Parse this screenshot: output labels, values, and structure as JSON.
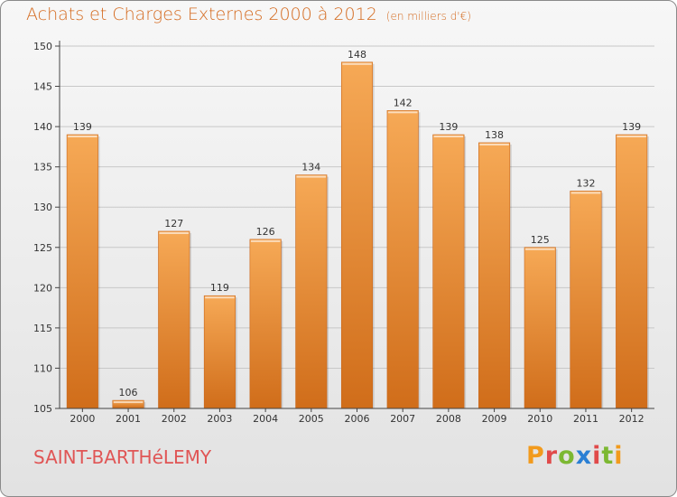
{
  "header": {
    "title": "Achats et Charges Externes 2000 à 2012",
    "unit": "(en milliers d'€)"
  },
  "footer": {
    "place": "SAINT-BARTHéLEMY",
    "logo_text": "Proxiti",
    "logo_colors": [
      "#f29a1c",
      "#e04a4a",
      "#7cb832",
      "#2a7fd4",
      "#e04a4a",
      "#7cb832",
      "#f29a1c"
    ]
  },
  "colors": {
    "bar_top": "#f6a956",
    "bar_bottom": "#d06d1a",
    "title": "#d46a1f",
    "place": "#e05555",
    "axis": "#444444",
    "grid": "#c8c8c8"
  },
  "chart_data": {
    "type": "bar",
    "title": "Achats et Charges Externes 2000 à 2012",
    "subtitle": "(en milliers d'€)",
    "categories": [
      "2000",
      "2001",
      "2002",
      "2003",
      "2004",
      "2005",
      "2006",
      "2007",
      "2008",
      "2009",
      "2010",
      "2011",
      "2012"
    ],
    "values": [
      139,
      106,
      127,
      119,
      126,
      134,
      148,
      142,
      139,
      138,
      125,
      132,
      139
    ],
    "ylim": [
      105,
      150
    ],
    "yticks": [
      105,
      110,
      115,
      120,
      125,
      130,
      135,
      140,
      145,
      150
    ],
    "xlabel": "",
    "ylabel": "",
    "grid": true,
    "legend": "none"
  }
}
